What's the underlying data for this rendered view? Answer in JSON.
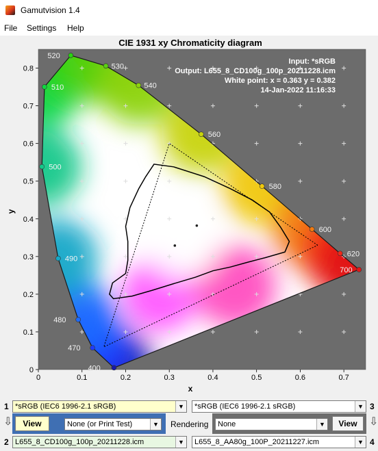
{
  "window": {
    "title": "Gamutvision 1.4"
  },
  "menu": [
    "File",
    "Settings",
    "Help"
  ],
  "chart_data": {
    "type": "scatter",
    "title": "CIE 1931 xy Chromaticity diagram",
    "xlabel": "x",
    "ylabel": "y",
    "xlim": [
      0,
      0.75
    ],
    "ylim": [
      0,
      0.85
    ],
    "x_ticks": [
      "0",
      "0.1",
      "0.2",
      "0.3",
      "0.4",
      "0.5",
      "0.6",
      "0.7"
    ],
    "y_ticks": [
      "0",
      "0.1",
      "0.2",
      "0.3",
      "0.4",
      "0.5",
      "0.6",
      "0.7",
      "0.8"
    ],
    "info": {
      "input": "Input:  *sRGB",
      "output": "Output: L655_8_CD100g_100p_20211228.icm",
      "white_point": "White point:  x = 0.363  y = 0.382",
      "date": "14-Jan-2022 11:16:33"
    },
    "wavelength_markers": [
      {
        "label": "400",
        "x": 0.1733,
        "y": 0.0048,
        "color": "#1818a8"
      },
      {
        "label": "470",
        "x": 0.1241,
        "y": 0.0578,
        "color": "#1f3bff"
      },
      {
        "label": "480",
        "x": 0.0913,
        "y": 0.1327,
        "color": "#1c6aff"
      },
      {
        "label": "490",
        "x": 0.0454,
        "y": 0.295,
        "color": "#14a8c8"
      },
      {
        "label": "500",
        "x": 0.0082,
        "y": 0.5384,
        "color": "#14c88a"
      },
      {
        "label": "510",
        "x": 0.0139,
        "y": 0.7502,
        "color": "#10d640"
      },
      {
        "label": "520",
        "x": 0.0743,
        "y": 0.8338,
        "color": "#2ad412"
      },
      {
        "label": "530",
        "x": 0.1547,
        "y": 0.8059,
        "color": "#5ad012"
      },
      {
        "label": "540",
        "x": 0.2296,
        "y": 0.7543,
        "color": "#8ed40c"
      },
      {
        "label": "560",
        "x": 0.3731,
        "y": 0.6245,
        "color": "#c8d40c"
      },
      {
        "label": "580",
        "x": 0.5125,
        "y": 0.4866,
        "color": "#f0c80c"
      },
      {
        "label": "600",
        "x": 0.627,
        "y": 0.3725,
        "color": "#f27a10"
      },
      {
        "label": "620",
        "x": 0.6915,
        "y": 0.3083,
        "color": "#f0281a"
      },
      {
        "label": "700",
        "x": 0.7347,
        "y": 0.2653,
        "color": "#e01818"
      }
    ],
    "series": [
      {
        "name": "*sRGB",
        "style": "dotted",
        "points": [
          [
            0.64,
            0.33
          ],
          [
            0.3,
            0.6
          ],
          [
            0.15,
            0.06
          ],
          [
            0.64,
            0.33
          ]
        ]
      },
      {
        "name": "L655_8_CD100g_100p_20211228.icm",
        "style": "solid",
        "points": [
          [
            0.245,
            0.51
          ],
          [
            0.265,
            0.545
          ],
          [
            0.31,
            0.538
          ],
          [
            0.38,
            0.512
          ],
          [
            0.44,
            0.48
          ],
          [
            0.49,
            0.45
          ],
          [
            0.53,
            0.418
          ],
          [
            0.555,
            0.378
          ],
          [
            0.575,
            0.34
          ],
          [
            0.565,
            0.312
          ],
          [
            0.52,
            0.297
          ],
          [
            0.48,
            0.285
          ],
          [
            0.44,
            0.272
          ],
          [
            0.4,
            0.262
          ],
          [
            0.36,
            0.245
          ],
          [
            0.31,
            0.228
          ],
          [
            0.26,
            0.21
          ],
          [
            0.215,
            0.195
          ],
          [
            0.172,
            0.188
          ],
          [
            0.163,
            0.2
          ],
          [
            0.17,
            0.23
          ],
          [
            0.2,
            0.255
          ],
          [
            0.205,
            0.29
          ],
          [
            0.205,
            0.34
          ],
          [
            0.2,
            0.38
          ],
          [
            0.21,
            0.43
          ],
          [
            0.23,
            0.48
          ],
          [
            0.245,
            0.51
          ]
        ]
      }
    ],
    "white_points": [
      [
        0.363,
        0.382
      ],
      [
        0.3127,
        0.329
      ]
    ]
  },
  "controls": {
    "row1_number_left": "1",
    "row1_number_right": "3",
    "row2_number_left": "2",
    "row2_number_right": "4",
    "input_left": "*sRGB   (IEC6 1996-2.1 sRGB)",
    "input_right": "*sRGB   (IEC6 1996-2.1 sRGB)",
    "view_left_label": "View",
    "view_right_label": "View",
    "print_test": "None (or Print Test)",
    "rendering_label": "Rendering",
    "rendering_value": "None",
    "output_left": "L655_8_CD100g_100p_20211228.icm",
    "output_right": "L655_8_AA80g_100P_20211227.icm",
    "colors": {
      "left_panel": "#3f6fb3",
      "right_panel": "#6d6d6d",
      "input_bg": "#ffffcc",
      "output_bg": "#e8f7e2"
    }
  }
}
